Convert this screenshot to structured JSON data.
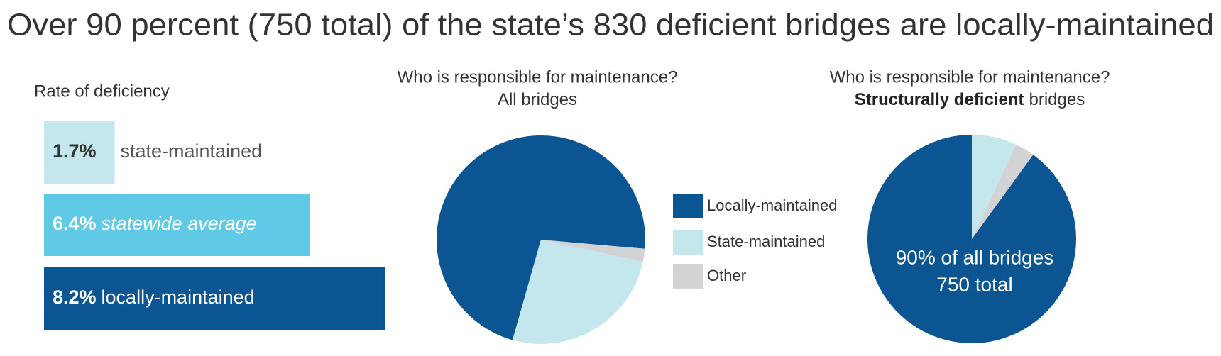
{
  "title": "Over 90 percent (750 total) of the state’s 830 deficient bridges are locally-maintained",
  "chart_data": [
    {
      "type": "bar",
      "title": "Rate of deficiency",
      "categories": [
        "state-maintained",
        "statewide average",
        "locally-maintained"
      ],
      "values": [
        1.7,
        6.4,
        8.2
      ],
      "value_labels": [
        "1.7%",
        "6.4%",
        "8.2%"
      ],
      "colors": [
        "#c4e6ed",
        "#5fc9e6",
        "#0b5592"
      ]
    },
    {
      "type": "pie",
      "title": "Who is responsible for maintenance?",
      "subtitle": "All bridges",
      "categories": [
        "Locally-maintained",
        "State-maintained",
        "Other"
      ],
      "values": [
        72,
        26,
        2
      ],
      "colors": [
        "#0b5592",
        "#c4e6ed",
        "#d3d3d5"
      ]
    },
    {
      "type": "pie",
      "title": "Who is responsible for maintenance?",
      "subtitle_bold": "Structurally deficient",
      "subtitle": "bridges",
      "values": [
        90,
        7,
        3
      ],
      "colors": [
        "#0b5592",
        "#c4e6ed",
        "#d3d3d5"
      ],
      "annotations": [
        "90% of all bridges",
        "750 total"
      ]
    }
  ]
}
